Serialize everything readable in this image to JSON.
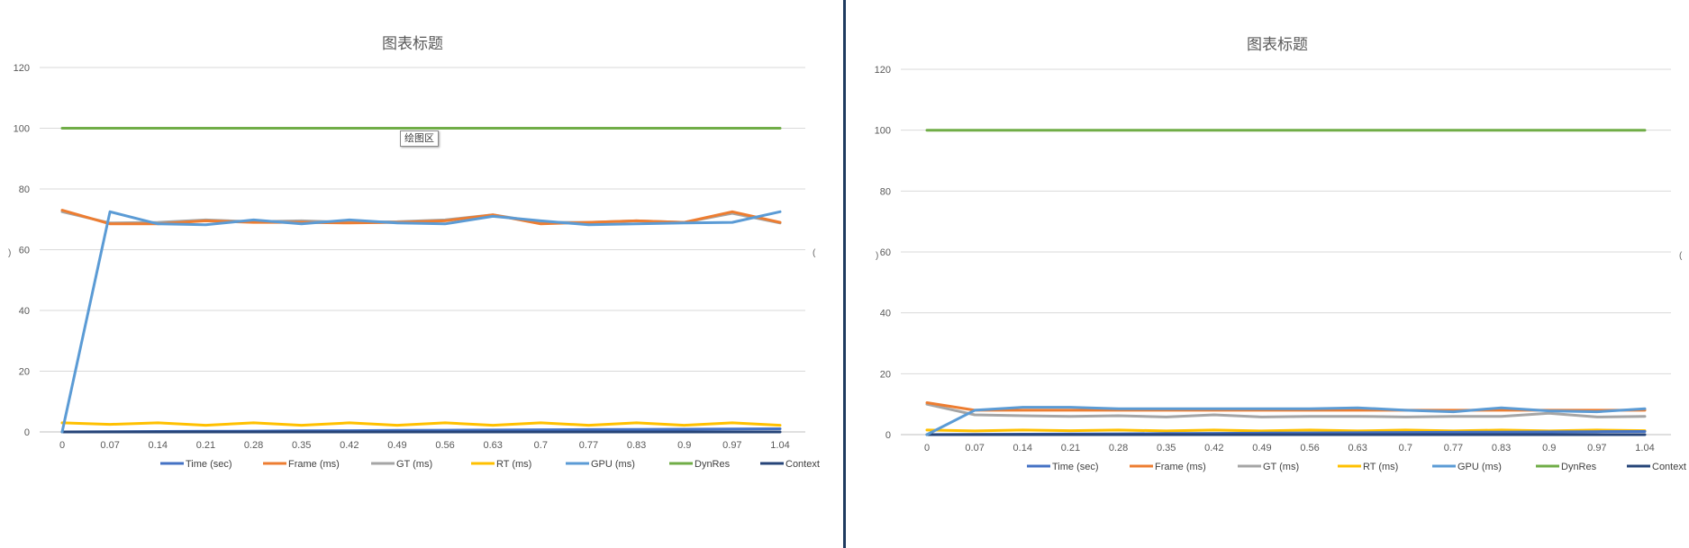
{
  "colors": {
    "time": "#4472C4",
    "frame": "#ED7D31",
    "gt": "#A5A5A5",
    "rt": "#FFC000",
    "gpu": "#5B9BD5",
    "dynres": "#70AD47",
    "context": "#264478",
    "grid": "#d9d9d9"
  },
  "tooltip": "绘图区",
  "chart_data": [
    {
      "type": "line",
      "title": "图表标题",
      "categories": [
        "0",
        "0.07",
        "0.14",
        "0.21",
        "0.28",
        "0.35",
        "0.42",
        "0.49",
        "0.56",
        "0.63",
        "0.7",
        "0.77",
        "0.83",
        "0.9",
        "0.97",
        "1.04"
      ],
      "ylim": [
        0,
        120
      ],
      "yticks": [
        0,
        20,
        40,
        60,
        80,
        100,
        120
      ],
      "grid": true,
      "legend": "bottom",
      "series": [
        {
          "name": "Time (sec)",
          "color_key": "time",
          "values": [
            0,
            0.07,
            0.14,
            0.21,
            0.28,
            0.35,
            0.42,
            0.49,
            0.56,
            0.63,
            0.7,
            0.77,
            0.83,
            0.9,
            0.97,
            1.04
          ]
        },
        {
          "name": "Frame (ms)",
          "color_key": "frame",
          "values": [
            73,
            68.5,
            68.5,
            69.5,
            69,
            69,
            68.8,
            69,
            69.5,
            71.5,
            68.5,
            69,
            69.5,
            69,
            72.5,
            69
          ]
        },
        {
          "name": "GT (ms)",
          "color_key": "gt",
          "values": [
            72.5,
            68.8,
            69,
            69.8,
            69.2,
            69.5,
            69,
            69.2,
            69.8,
            71.5,
            69,
            69,
            69.5,
            69,
            72,
            68.8
          ]
        },
        {
          "name": "RT (ms)",
          "color_key": "rt",
          "values": [
            3,
            2.5,
            3,
            2.2,
            3,
            2.2,
            3,
            2.2,
            3,
            2.2,
            3,
            2.2,
            3,
            2.2,
            3,
            2.2
          ]
        },
        {
          "name": "GPU (ms)",
          "color_key": "gpu",
          "values": [
            0,
            72.5,
            68.5,
            68.2,
            69.8,
            68.5,
            69.8,
            68.8,
            68.5,
            71,
            69.5,
            68.2,
            68.5,
            68.8,
            69,
            72.5
          ]
        },
        {
          "name": "DynRes",
          "color_key": "dynres",
          "values": [
            100,
            100,
            100,
            100,
            100,
            100,
            100,
            100,
            100,
            100,
            100,
            100,
            100,
            100,
            100,
            100
          ]
        },
        {
          "name": "Context",
          "color_key": "context",
          "values": [
            0,
            0,
            0,
            0,
            0,
            0,
            0,
            0,
            0,
            0,
            0,
            0,
            0,
            0,
            0,
            0
          ]
        }
      ]
    },
    {
      "type": "line",
      "title": "图表标题",
      "categories": [
        "0",
        "0.07",
        "0.14",
        "0.21",
        "0.28",
        "0.35",
        "0.42",
        "0.49",
        "0.56",
        "0.63",
        "0.7",
        "0.77",
        "0.83",
        "0.9",
        "0.97",
        "1.04"
      ],
      "ylim": [
        0,
        120
      ],
      "yticks": [
        0,
        20,
        40,
        60,
        80,
        100,
        120
      ],
      "grid": true,
      "legend": "bottom",
      "series": [
        {
          "name": "Time (sec)",
          "color_key": "time",
          "values": [
            0,
            0.07,
            0.14,
            0.21,
            0.28,
            0.35,
            0.42,
            0.49,
            0.56,
            0.63,
            0.7,
            0.77,
            0.83,
            0.9,
            0.97,
            1.04
          ]
        },
        {
          "name": "Frame (ms)",
          "color_key": "frame",
          "values": [
            10.5,
            8,
            8,
            8,
            8,
            8,
            8,
            8,
            8,
            8,
            8,
            8,
            8,
            8,
            8,
            8
          ]
        },
        {
          "name": "GT (ms)",
          "color_key": "gt",
          "values": [
            10,
            6.5,
            6.2,
            6,
            6.2,
            5.8,
            6.5,
            5.8,
            6,
            6,
            5.8,
            6,
            6,
            7,
            5.8,
            6
          ]
        },
        {
          "name": "RT (ms)",
          "color_key": "rt",
          "values": [
            1.5,
            1.2,
            1.5,
            1.3,
            1.5,
            1.2,
            1.5,
            1.2,
            1.5,
            1.2,
            1.5,
            1.2,
            1.5,
            1.2,
            1.5,
            1.3
          ]
        },
        {
          "name": "GPU (ms)",
          "color_key": "gpu",
          "values": [
            0,
            8,
            9,
            9,
            8.5,
            8.5,
            8.5,
            8.5,
            8.5,
            8.8,
            8,
            7.5,
            8.8,
            7.8,
            7.5,
            8.5
          ]
        },
        {
          "name": "DynRes",
          "color_key": "dynres",
          "values": [
            100,
            100,
            100,
            100,
            100,
            100,
            100,
            100,
            100,
            100,
            100,
            100,
            100,
            100,
            100,
            100
          ]
        },
        {
          "name": "Context",
          "color_key": "context",
          "values": [
            0,
            0,
            0,
            0,
            0,
            0,
            0,
            0,
            0,
            0,
            0,
            0,
            0,
            0,
            0,
            0
          ]
        }
      ]
    }
  ]
}
